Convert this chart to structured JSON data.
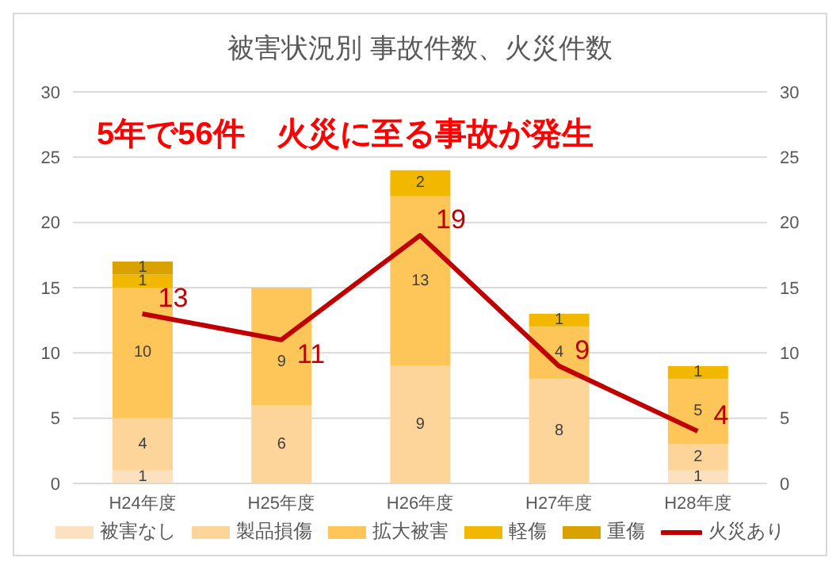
{
  "chart_data": {
    "type": "bar",
    "title": "被害状況別 事故件数、火災件数",
    "categories": [
      "H24年度",
      "H25年度",
      "H26年度",
      "H27年度",
      "H28年度"
    ],
    "stacked": true,
    "series": [
      {
        "name": "被害なし",
        "color": "#fde0bd",
        "values": [
          1,
          0,
          0,
          0,
          1
        ],
        "value_labels": [
          "1",
          null,
          null,
          null,
          "1"
        ]
      },
      {
        "name": "製品損傷",
        "color": "#fdd49a",
        "values": [
          4,
          6,
          9,
          8,
          2
        ],
        "value_labels": [
          "4",
          "6",
          "9",
          "8",
          "2"
        ]
      },
      {
        "name": "拡大被害",
        "color": "#fec658",
        "values": [
          10,
          9,
          13,
          4,
          5
        ],
        "value_labels": [
          "10",
          "9",
          "13",
          "4",
          "5"
        ]
      },
      {
        "name": "軽傷",
        "color": "#f2b800",
        "values": [
          1,
          0,
          2,
          1,
          1
        ],
        "value_labels": [
          "1",
          null,
          "2",
          "1",
          "1"
        ]
      },
      {
        "name": "重傷",
        "color": "#d9a200",
        "values": [
          1,
          0,
          0,
          0,
          0
        ],
        "value_labels": [
          "1",
          null,
          null,
          null,
          null
        ]
      },
      {
        "name": "火災あり",
        "type": "line",
        "axis": "y2",
        "color": "#c00000",
        "values": [
          13,
          11,
          19,
          9,
          4
        ],
        "value_labels": [
          "13",
          "11",
          "19",
          "9",
          "4"
        ]
      }
    ],
    "ylim": [
      0,
      30
    ],
    "yticks": [
      0,
      5,
      10,
      15,
      20,
      25,
      30
    ],
    "y2lim": [
      0,
      30
    ],
    "y2ticks": [
      0,
      5,
      10,
      15,
      20,
      25,
      30
    ],
    "grid": "y",
    "legend": "bottom",
    "marker": "none",
    "annotations": [
      "5年で56件　火災に至る事故が発生"
    ]
  }
}
